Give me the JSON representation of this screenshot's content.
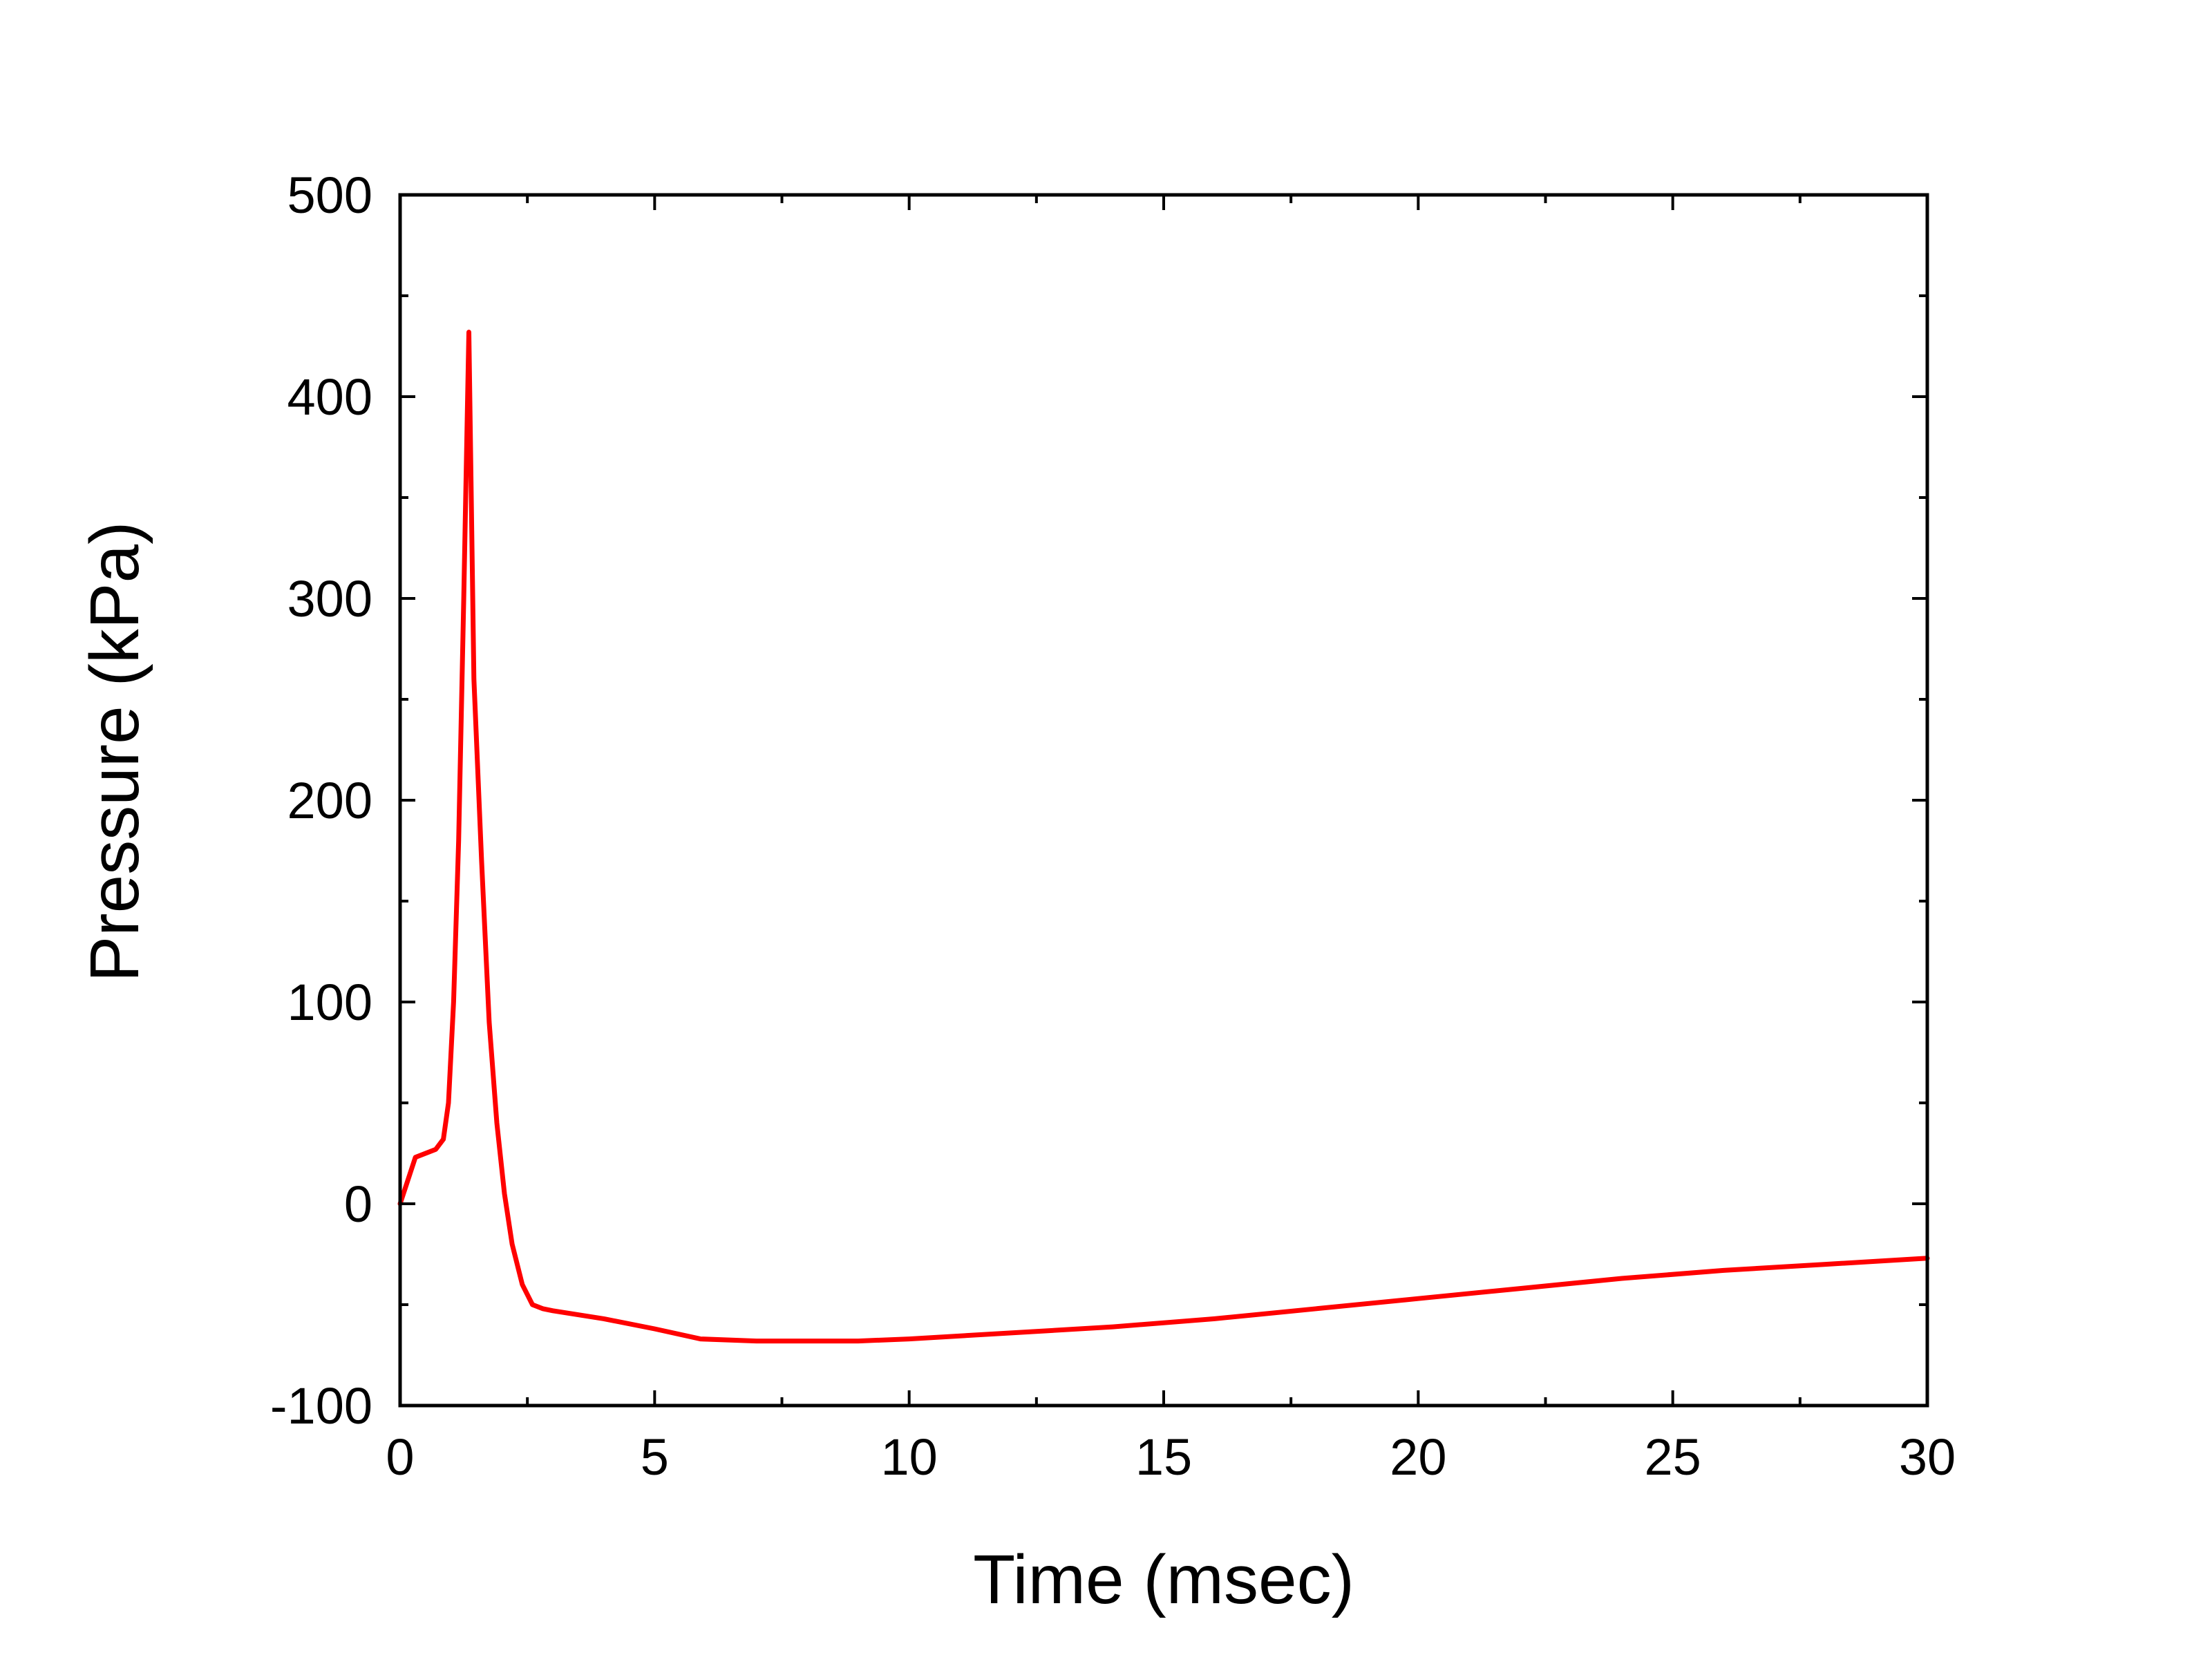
{
  "chart_data": {
    "type": "line",
    "title": "",
    "xlabel": "Time (msec)",
    "ylabel": "Pressure (kPa)",
    "xlim": [
      0,
      30
    ],
    "ylim": [
      -100,
      500
    ],
    "x_ticks": [
      0,
      5,
      10,
      15,
      20,
      25,
      30
    ],
    "y_ticks": [
      -100,
      0,
      100,
      200,
      300,
      400,
      500
    ],
    "x_tick_labels": [
      "0",
      "5",
      "10",
      "15",
      "20",
      "25",
      "30"
    ],
    "y_tick_labels": [
      "-100",
      "0",
      "100",
      "200",
      "300",
      "400",
      "500"
    ],
    "grid": false,
    "legend": "none",
    "series": [
      {
        "color": "#ff0000",
        "x": [
          0,
          0.3,
          0.7,
          0.85,
          0.95,
          1.05,
          1.15,
          1.25,
          1.35,
          1.45,
          1.6,
          1.75,
          1.9,
          2.05,
          2.2,
          2.4,
          2.6,
          2.8,
          3.0,
          4.0,
          5.0,
          5.9,
          7.0,
          8.0,
          9.0,
          10.0,
          12.0,
          14.0,
          16.0,
          18.0,
          20.0,
          22.0,
          24.0,
          26.0,
          28.0,
          30.0
        ],
        "y": [
          0,
          23,
          27,
          32,
          50,
          100,
          180,
          300,
          432,
          260,
          170,
          90,
          40,
          5,
          -20,
          -40,
          -50,
          -52,
          -53,
          -57,
          -62,
          -67,
          -68,
          -68,
          -68,
          -67,
          -64,
          -61,
          -57,
          -52,
          -47,
          -42,
          -37,
          -33,
          -30,
          -27
        ]
      }
    ]
  }
}
